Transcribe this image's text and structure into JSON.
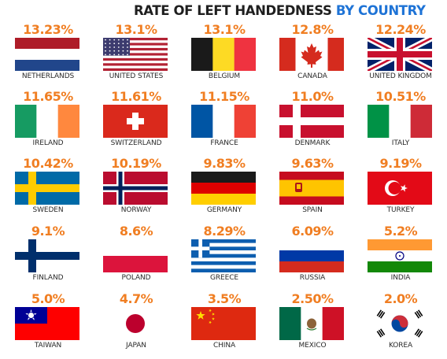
{
  "title": {
    "prefix": "RATE OF LEFT HANDEDNESS",
    "highlight": "BY COUNTRY"
  },
  "colors": {
    "value": "#f07e22",
    "highlight": "#1e73d6",
    "text": "#1f1f1f"
  },
  "chart_data": {
    "type": "table",
    "title": "RATE OF LEFT HANDEDNESS BY COUNTRY",
    "columns": [
      "country",
      "rate"
    ],
    "rows": [
      {
        "country": "NETHERLANDS",
        "label": "13.23%",
        "value": 13.23,
        "flag": "netherlands-flag"
      },
      {
        "country": "UNITED STATES",
        "label": "13.1%",
        "value": 13.1,
        "flag": "united-states-flag"
      },
      {
        "country": "BELGIUM",
        "label": "13.1%",
        "value": 13.1,
        "flag": "belgium-flag"
      },
      {
        "country": "CANADA",
        "label": "12.8%",
        "value": 12.8,
        "flag": "canada-flag"
      },
      {
        "country": "UNITED KINGDOM",
        "label": "12.24%",
        "value": 12.24,
        "flag": "united-kingdom-flag"
      },
      {
        "country": "IRELAND",
        "label": "11.65%",
        "value": 11.65,
        "flag": "ireland-flag"
      },
      {
        "country": "SWITZERLAND",
        "label": "11.61%",
        "value": 11.61,
        "flag": "switzerland-flag"
      },
      {
        "country": "FRANCE",
        "label": "11.15%",
        "value": 11.15,
        "flag": "france-flag"
      },
      {
        "country": "DENMARK",
        "label": "11.0%",
        "value": 11.0,
        "flag": "denmark-flag"
      },
      {
        "country": "ITALY",
        "label": "10.51%",
        "value": 10.51,
        "flag": "italy-flag"
      },
      {
        "country": "SWEDEN",
        "label": "10.42%",
        "value": 10.42,
        "flag": "sweden-flag"
      },
      {
        "country": "NORWAY",
        "label": "10.19%",
        "value": 10.19,
        "flag": "norway-flag"
      },
      {
        "country": "GERMANY",
        "label": "9.83%",
        "value": 9.83,
        "flag": "germany-flag"
      },
      {
        "country": "SPAIN",
        "label": "9.63%",
        "value": 9.63,
        "flag": "spain-flag"
      },
      {
        "country": "TURKEY",
        "label": "9.19%",
        "value": 9.19,
        "flag": "turkey-flag"
      },
      {
        "country": "FINLAND",
        "label": "9.1%",
        "value": 9.1,
        "flag": "finland-flag"
      },
      {
        "country": "POLAND",
        "label": "8.6%",
        "value": 8.6,
        "flag": "poland-flag"
      },
      {
        "country": "GREECE",
        "label": "8.29%",
        "value": 8.29,
        "flag": "greece-flag"
      },
      {
        "country": "RUSSIA",
        "label": "6.09%",
        "value": 6.09,
        "flag": "russia-flag"
      },
      {
        "country": "INDIA",
        "label": "5.2%",
        "value": 5.2,
        "flag": "india-flag"
      },
      {
        "country": "TAIWAN",
        "label": "5.0%",
        "value": 5.0,
        "flag": "taiwan-flag"
      },
      {
        "country": "JAPAN",
        "label": "4.7%",
        "value": 4.7,
        "flag": "japan-flag"
      },
      {
        "country": "CHINA",
        "label": "3.5%",
        "value": 3.5,
        "flag": "china-flag"
      },
      {
        "country": "MEXICO",
        "label": "2.50%",
        "value": 2.5,
        "flag": "mexico-flag"
      },
      {
        "country": "KOREA",
        "label": "2.0%",
        "value": 2.0,
        "flag": "korea-flag"
      }
    ]
  }
}
